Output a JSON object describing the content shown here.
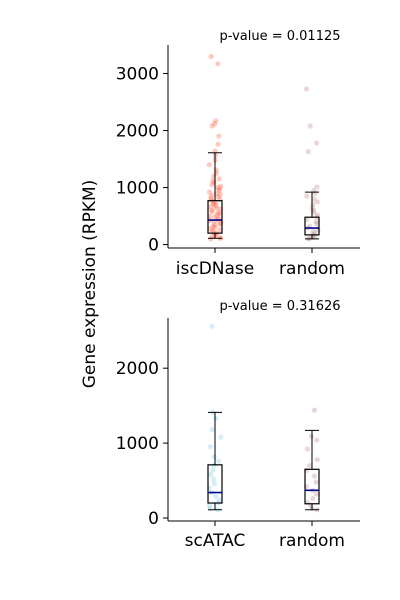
{
  "figure": {
    "ylabel": "Gene expression (RPKM)"
  },
  "chart_data": [
    {
      "type": "box",
      "annotation": "p-value = 0.01125",
      "ylabel": "Gene expression (RPKM)",
      "ylim": [
        -60,
        3500
      ],
      "yticks": [
        0,
        1000,
        2000,
        3000
      ],
      "ytick_labels": [
        "0",
        "1000",
        "2000",
        "3000"
      ],
      "categories": [
        "iscDNase",
        "random"
      ],
      "colors": {
        "points": [
          "#ff6347",
          "#bc8f8f"
        ],
        "median": "#00008b",
        "box": "#000000"
      },
      "boxes": [
        {
          "category": "iscDNase",
          "whisker_low": 110,
          "q1": 200,
          "median": 430,
          "q3": 770,
          "whisker_high": 1610
        },
        {
          "category": "random",
          "whisker_low": 100,
          "q1": 170,
          "median": 290,
          "q3": 480,
          "whisker_high": 920
        }
      ],
      "points": [
        [
          3300,
          3170,
          2170,
          2120,
          2080,
          1900,
          1760,
          1640,
          1560,
          1480,
          1400,
          1310,
          1250,
          1200,
          1150,
          1120,
          1090,
          1050,
          1020,
          1000,
          980,
          950,
          920,
          900,
          880,
          860,
          840,
          820,
          800,
          780,
          760,
          740,
          720,
          700,
          680,
          660,
          640,
          620,
          600,
          580,
          560,
          540,
          520,
          500,
          480,
          460,
          440,
          420,
          400,
          380,
          360,
          340,
          320,
          300,
          280,
          260,
          240,
          220,
          200,
          180,
          160,
          140,
          120,
          110,
          100
        ],
        [
          2730,
          2080,
          1780,
          1630,
          1010,
          950,
          900,
          850,
          800,
          750,
          700,
          640,
          600,
          560,
          520,
          480,
          440,
          400,
          360,
          320,
          290,
          260,
          230,
          200,
          170,
          150,
          130,
          110,
          100
        ]
      ]
    },
    {
      "type": "box",
      "annotation": "p-value = 0.31626",
      "ylabel": "Gene expression (RPKM)",
      "ylim": [
        -40,
        2670
      ],
      "yticks": [
        0,
        1000,
        2000
      ],
      "ytick_labels": [
        "0",
        "1000",
        "2000"
      ],
      "categories": [
        "scATAC",
        "random"
      ],
      "colors": {
        "points": [
          "#87ceeb",
          "#bc8f8f"
        ],
        "median": "#00008b",
        "box": "#000000"
      },
      "boxes": [
        {
          "category": "scATAC",
          "whisker_low": 110,
          "q1": 200,
          "median": 340,
          "q3": 710,
          "whisker_high": 1410
        },
        {
          "category": "random",
          "whisker_low": 110,
          "q1": 190,
          "median": 370,
          "q3": 650,
          "whisker_high": 1170
        }
      ],
      "points": [
        [
          2560,
          1410,
          1330,
          1180,
          1080,
          950,
          820,
          760,
          700,
          640,
          580,
          520,
          460,
          400,
          340,
          290,
          240,
          200,
          160,
          130,
          110
        ],
        [
          1440,
          1090,
          1040,
          920,
          780,
          700,
          640,
          560,
          480,
          420,
          370,
          320,
          260,
          210,
          170,
          130,
          110
        ]
      ]
    }
  ]
}
